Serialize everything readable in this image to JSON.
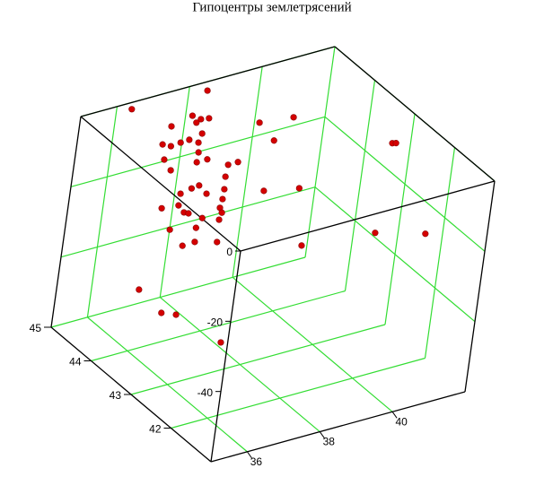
{
  "chart_data": {
    "type": "scatter3d",
    "title": "Гипоцентры землетрясений",
    "series": [
      {
        "color": "#d40000",
        "x": [
          38.27,
          36.24,
          37.34,
          37.43,
          37.62,
          37.25,
          36.64,
          38.56,
          39.4,
          36.68,
          37.1,
          36.43,
          36.01,
          36.14,
          36.8,
          38.42,
          40.81,
          36.56,
          35.67,
          36.28,
          36.57,
          37.14,
          36.87,
          35.54,
          36.52,
          37.21,
          36.98,
          37.64,
          38.42,
          39.22,
          36.62,
          37.16,
          37.36,
          35.87,
          36.29,
          36.23,
          36.3,
          37.09,
          37.01,
          36.47,
          36.78,
          35.51,
          36.1,
          35.86,
          36.21,
          36.67,
          38.34,
          40.18,
          41.2,
          35.33,
          35.22,
          35.48,
          36.21,
          40.89
        ],
        "y": [
          44.8,
          44.85,
          44.33,
          44.2,
          44.17,
          44.15,
          44.22,
          43.76,
          43.67,
          43.81,
          43.87,
          43.8,
          43.87,
          43.78,
          43.69,
          43.27,
          42.48,
          43.47,
          43.52,
          43.26,
          43.26,
          43.01,
          43.01,
          43.24,
          42.76,
          43.86,
          43.84,
          43.62,
          43.34,
          43.18,
          43.79,
          43.63,
          43.41,
          43.58,
          43.54,
          43.35,
          43.3,
          43.23,
          43.11,
          43.11,
          42.97,
          43.05,
          42.93,
          42.99,
          43.0,
          42.86,
          42.26,
          42.09,
          41.76,
          43.41,
          42.75,
          42.62,
          42.1,
          42.46
        ],
        "z": [
          0,
          0,
          0,
          0,
          0,
          0,
          0,
          0,
          0,
          0,
          0,
          0,
          0,
          0,
          0,
          0,
          0,
          0,
          0,
          0,
          0,
          0,
          0,
          0,
          0,
          -15,
          -15,
          -15,
          -15,
          -15,
          -15,
          -15,
          -15,
          -15,
          -15,
          -15,
          -15,
          -15,
          -15,
          -15,
          -15,
          -15,
          -15,
          -20,
          -20,
          -20,
          -20,
          -20,
          -20,
          -35,
          -35,
          -35,
          -40,
          0
        ]
      }
    ],
    "xlim": [
      35,
      42
    ],
    "ylim": [
      41,
      45
    ],
    "zlim": [
      -60,
      0
    ],
    "xticks": [
      36,
      38,
      40
    ],
    "yticks": [
      42,
      43,
      44,
      45
    ],
    "zticks": [
      0,
      -20,
      -40
    ],
    "grid": true,
    "grid_color": "#33dd33"
  }
}
